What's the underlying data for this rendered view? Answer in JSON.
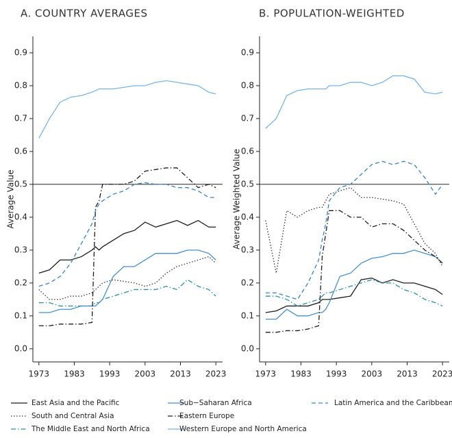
{
  "chart_data": [
    {
      "type": "line",
      "title": "A. COUNTRY AVERAGES",
      "ylabel": "Average Value",
      "x": [
        1973,
        1976,
        1979,
        1982,
        1985,
        1988,
        1989,
        1990,
        1991,
        1994,
        1997,
        2000,
        2003,
        2006,
        2009,
        2012,
        2015,
        2018,
        2021,
        2023
      ],
      "xlim": [
        1971.3,
        2024.9
      ],
      "xticks": [
        1973,
        1983,
        1993,
        2003,
        2013,
        2023
      ],
      "ylim": [
        -0.04,
        0.95
      ],
      "yticks": [
        {
          "value": 0,
          "label": "0.0"
        },
        0.1,
        0.2,
        0.3,
        0.4,
        0.5,
        0.6,
        0.7,
        0.8,
        0.9
      ],
      "hline": 0.5,
      "legend": "bottom",
      "series": [
        {
          "name": "East Asia and the Pacific",
          "color": "#1a1a1a",
          "dash": "solid",
          "values": [
            0.23,
            0.24,
            0.27,
            0.27,
            0.28,
            0.3,
            0.31,
            0.3,
            0.31,
            0.33,
            0.35,
            0.36,
            0.385,
            0.37,
            0.38,
            0.39,
            0.375,
            0.39,
            0.37,
            0.37
          ]
        },
        {
          "name": "South and Central Asia",
          "color": "#333333",
          "dash": "dotted",
          "values": [
            0.18,
            0.15,
            0.15,
            0.16,
            0.16,
            0.17,
            0.18,
            0.19,
            0.2,
            0.21,
            0.205,
            0.2,
            0.19,
            0.2,
            0.23,
            0.25,
            0.26,
            0.27,
            0.28,
            0.26
          ]
        },
        {
          "name": "The Middle East and North Africa",
          "color": "#2b8fa3",
          "dash": "dashdot",
          "values": [
            0.14,
            0.14,
            0.13,
            0.13,
            0.13,
            0.13,
            0.14,
            0.14,
            0.15,
            0.16,
            0.17,
            0.18,
            0.18,
            0.18,
            0.19,
            0.18,
            0.21,
            0.19,
            0.18,
            0.16
          ]
        },
        {
          "name": "Sub−Saharan Africa",
          "color": "#4a8fc8",
          "dash": "solid",
          "values": [
            0.11,
            0.11,
            0.12,
            0.12,
            0.13,
            0.13,
            0.13,
            0.14,
            0.15,
            0.22,
            0.25,
            0.25,
            0.27,
            0.29,
            0.29,
            0.29,
            0.3,
            0.3,
            0.29,
            0.27
          ]
        },
        {
          "name": "Eastern Europe",
          "color": "#1a1a1a",
          "dash": "dashdot",
          "values": [
            0.07,
            0.07,
            0.075,
            0.075,
            0.075,
            0.08,
            0.43,
            0.45,
            0.5,
            0.5,
            0.5,
            0.51,
            0.54,
            0.545,
            0.55,
            0.55,
            0.52,
            0.49,
            0.5,
            0.49
          ]
        },
        {
          "name": "Western Europe and North America",
          "color": "#7ab4e0",
          "dash": "solid",
          "values": [
            0.64,
            0.7,
            0.75,
            0.765,
            0.77,
            0.78,
            0.785,
            0.79,
            0.79,
            0.79,
            0.795,
            0.8,
            0.8,
            0.81,
            0.815,
            0.81,
            0.805,
            0.8,
            0.78,
            0.775
          ]
        },
        {
          "name": "Latin America and the Caribbean",
          "color": "#3b82c4",
          "dash": "dashed",
          "values": [
            0.19,
            0.2,
            0.22,
            0.26,
            0.32,
            0.38,
            0.42,
            0.44,
            0.45,
            0.47,
            0.48,
            0.5,
            0.505,
            0.5,
            0.5,
            0.49,
            0.49,
            0.48,
            0.46,
            0.46
          ]
        }
      ]
    },
    {
      "type": "line",
      "title": "B. POPULATION-WEIGHTED",
      "ylabel": "Average Weighted Value",
      "x": [
        1973,
        1976,
        1979,
        1982,
        1985,
        1988,
        1989,
        1990,
        1991,
        1994,
        1997,
        2000,
        2003,
        2006,
        2009,
        2012,
        2015,
        2018,
        2021,
        2023
      ],
      "xlim": [
        1971.3,
        2024.9
      ],
      "xticks": [
        1973,
        1983,
        1993,
        2003,
        2013,
        2023
      ],
      "ylim": [
        -0.04,
        0.95
      ],
      "yticks": [
        {
          "value": 0,
          "label": "0.0"
        },
        0.1,
        0.2,
        0.3,
        0.4,
        0.5,
        0.6,
        0.7,
        0.8,
        0.9
      ],
      "hline": 0.5,
      "series": [
        {
          "name": "East Asia and the Pacific",
          "color": "#1a1a1a",
          "dash": "solid",
          "values": [
            0.11,
            0.115,
            0.13,
            0.13,
            0.13,
            0.14,
            0.15,
            0.15,
            0.15,
            0.155,
            0.16,
            0.21,
            0.215,
            0.2,
            0.21,
            0.2,
            0.2,
            0.19,
            0.18,
            0.165
          ]
        },
        {
          "name": "South and Central Asia",
          "color": "#333333",
          "dash": "dotted",
          "values": [
            0.39,
            0.23,
            0.42,
            0.4,
            0.42,
            0.43,
            0.43,
            0.45,
            0.47,
            0.48,
            0.49,
            0.46,
            0.46,
            0.455,
            0.45,
            0.44,
            0.38,
            0.32,
            0.29,
            0.25
          ]
        },
        {
          "name": "The Middle East and North Africa",
          "color": "#2b8fa3",
          "dash": "dashdot",
          "values": [
            0.16,
            0.16,
            0.15,
            0.13,
            0.14,
            0.15,
            0.16,
            0.17,
            0.17,
            0.18,
            0.19,
            0.2,
            0.21,
            0.2,
            0.2,
            0.18,
            0.17,
            0.15,
            0.14,
            0.13
          ]
        },
        {
          "name": "Sub−Saharan Africa",
          "color": "#4a8fc8",
          "dash": "solid",
          "values": [
            0.09,
            0.09,
            0.12,
            0.1,
            0.1,
            0.11,
            0.11,
            0.12,
            0.14,
            0.22,
            0.23,
            0.26,
            0.275,
            0.28,
            0.29,
            0.29,
            0.3,
            0.29,
            0.28,
            0.26
          ]
        },
        {
          "name": "Eastern Europe",
          "color": "#1a1a1a",
          "dash": "dashdot",
          "values": [
            0.05,
            0.05,
            0.055,
            0.055,
            0.06,
            0.07,
            0.28,
            0.35,
            0.42,
            0.42,
            0.4,
            0.4,
            0.37,
            0.38,
            0.38,
            0.36,
            0.33,
            0.3,
            0.28,
            0.26
          ]
        },
        {
          "name": "Western Europe and North America",
          "color": "#7ab4e0",
          "dash": "solid",
          "values": [
            0.67,
            0.7,
            0.77,
            0.785,
            0.79,
            0.79,
            0.79,
            0.79,
            0.8,
            0.8,
            0.81,
            0.81,
            0.8,
            0.81,
            0.83,
            0.83,
            0.82,
            0.78,
            0.775,
            0.78
          ]
        },
        {
          "name": "Latin America and the Caribbean",
          "color": "#3b82c4",
          "dash": "dashed",
          "values": [
            0.17,
            0.17,
            0.16,
            0.15,
            0.2,
            0.27,
            0.33,
            0.38,
            0.45,
            0.49,
            0.5,
            0.53,
            0.56,
            0.57,
            0.56,
            0.57,
            0.56,
            0.52,
            0.47,
            0.5
          ]
        }
      ]
    }
  ]
}
